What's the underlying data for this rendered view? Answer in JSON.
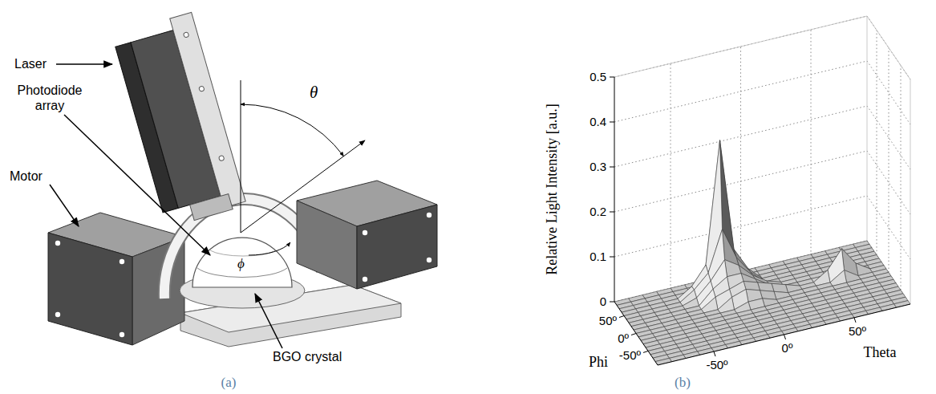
{
  "diagram": {
    "caption": "(a)",
    "labels": {
      "laser": "Laser",
      "photodiode_array": "Photodiode array",
      "motor": "Motor",
      "crystal": "BGO crystal",
      "theta": "θ",
      "phi": "ϕ"
    }
  },
  "chart_data": {
    "type": "surface",
    "caption": "(b)",
    "z_label": "Relative Light Intensity [a.u.]",
    "x_label": "Theta",
    "y_label": "Phi",
    "x": [
      -90,
      -80,
      -70,
      -60,
      -50,
      -40,
      -30,
      -20,
      -10,
      0,
      10,
      20,
      30,
      40,
      50,
      60,
      70,
      80,
      90
    ],
    "y": [
      -90,
      -80,
      -70,
      -60,
      -50,
      -40,
      -30,
      -20,
      -10,
      0,
      10,
      20,
      30,
      40,
      50,
      60,
      70,
      80,
      90
    ],
    "z": [
      [
        0,
        0,
        0,
        0,
        0,
        0,
        0,
        0,
        0,
        0,
        0,
        0,
        0,
        0,
        0,
        0,
        0,
        0,
        0
      ],
      [
        0,
        0,
        0,
        0,
        0,
        0,
        0,
        0,
        0,
        0,
        0,
        0,
        0,
        0,
        0,
        0,
        0,
        0,
        0
      ],
      [
        0,
        0,
        0,
        0,
        0,
        0,
        0,
        0,
        0,
        0,
        0,
        0,
        0,
        0,
        0,
        0,
        0,
        0,
        0
      ],
      [
        0,
        0,
        0,
        0,
        0,
        0,
        0,
        0,
        0,
        0,
        0,
        0,
        0,
        0,
        0,
        0,
        0,
        0,
        0
      ],
      [
        0,
        0,
        0,
        0,
        0,
        0,
        0,
        0,
        0,
        0,
        0,
        0,
        0,
        0,
        0,
        0,
        0,
        0,
        0
      ],
      [
        0,
        0,
        0,
        0,
        0,
        0,
        0,
        0,
        0,
        0,
        0,
        0,
        0,
        0,
        0,
        0,
        0,
        0,
        0
      ],
      [
        0,
        0,
        0,
        0,
        0,
        0,
        0,
        0,
        0,
        0,
        0,
        0,
        0,
        0,
        0,
        0,
        0,
        0,
        0
      ],
      [
        0,
        0,
        0,
        0,
        0,
        0,
        0,
        0,
        0,
        0,
        0,
        0,
        0,
        0,
        0,
        0,
        0,
        0,
        0
      ],
      [
        0,
        0,
        0,
        0,
        0,
        0,
        0,
        0,
        0,
        0,
        0,
        0,
        0,
        0,
        0,
        0,
        0,
        0,
        0
      ],
      [
        0,
        0,
        0,
        0,
        0,
        0,
        0,
        0,
        0.01,
        0.01,
        0,
        0,
        0,
        0,
        0,
        0,
        0,
        0,
        0
      ],
      [
        0,
        0,
        0,
        0,
        0,
        0,
        0,
        0.02,
        0.03,
        0.02,
        0.01,
        0,
        0,
        0,
        0,
        0.02,
        0,
        0,
        0
      ],
      [
        0,
        0,
        0,
        0,
        0,
        0,
        0.02,
        0.03,
        0.04,
        0.03,
        0.02,
        0.01,
        0,
        0,
        0.02,
        0.06,
        0.02,
        0,
        0
      ],
      [
        0,
        0,
        0,
        0,
        0,
        0,
        0.03,
        0.05,
        0.05,
        0.03,
        0.01,
        0,
        0,
        0,
        0,
        0.02,
        0,
        0,
        0
      ],
      [
        0,
        0,
        0,
        0,
        0,
        0.01,
        0.04,
        0.08,
        0.06,
        0.03,
        0.01,
        0,
        0,
        0,
        0,
        0,
        0,
        0,
        0
      ],
      [
        0,
        0,
        0,
        0,
        0,
        0.02,
        0.05,
        0.14,
        0.07,
        0.03,
        0,
        0,
        0,
        0,
        0,
        0,
        0,
        0,
        0
      ],
      [
        0,
        0,
        0,
        0,
        0,
        0.02,
        0.06,
        0.33,
        0.08,
        0.03,
        0,
        0,
        0,
        0,
        0,
        0,
        0,
        0,
        0
      ],
      [
        0,
        0,
        0,
        0,
        0,
        0,
        0.03,
        0.1,
        0.04,
        0,
        0,
        0,
        0,
        0,
        0,
        0,
        0,
        0,
        0
      ],
      [
        0,
        0,
        0,
        0,
        0,
        0,
        0,
        0.02,
        0,
        0,
        0,
        0,
        0,
        0,
        0,
        0,
        0,
        0,
        0
      ],
      [
        0,
        0,
        0,
        0,
        0,
        0,
        0,
        0,
        0,
        0,
        0,
        0,
        0,
        0,
        0,
        0,
        0,
        0,
        0
      ]
    ],
    "xlim": [
      -90,
      90
    ],
    "ylim": [
      -90,
      90
    ],
    "zlim": [
      0,
      0.5
    ],
    "xticks": [
      {
        "value": -50,
        "label": "-50º"
      },
      {
        "value": 0,
        "label": "0º"
      },
      {
        "value": 50,
        "label": "50º"
      }
    ],
    "yticks": [
      {
        "value": -50,
        "label": "-50º"
      },
      {
        "value": 0,
        "label": "0º"
      },
      {
        "value": 50,
        "label": "50º"
      }
    ],
    "zticks": [
      0,
      0.1,
      0.2,
      0.3,
      0.4,
      0.5
    ],
    "grid": true,
    "color": "#c8c8c8"
  }
}
